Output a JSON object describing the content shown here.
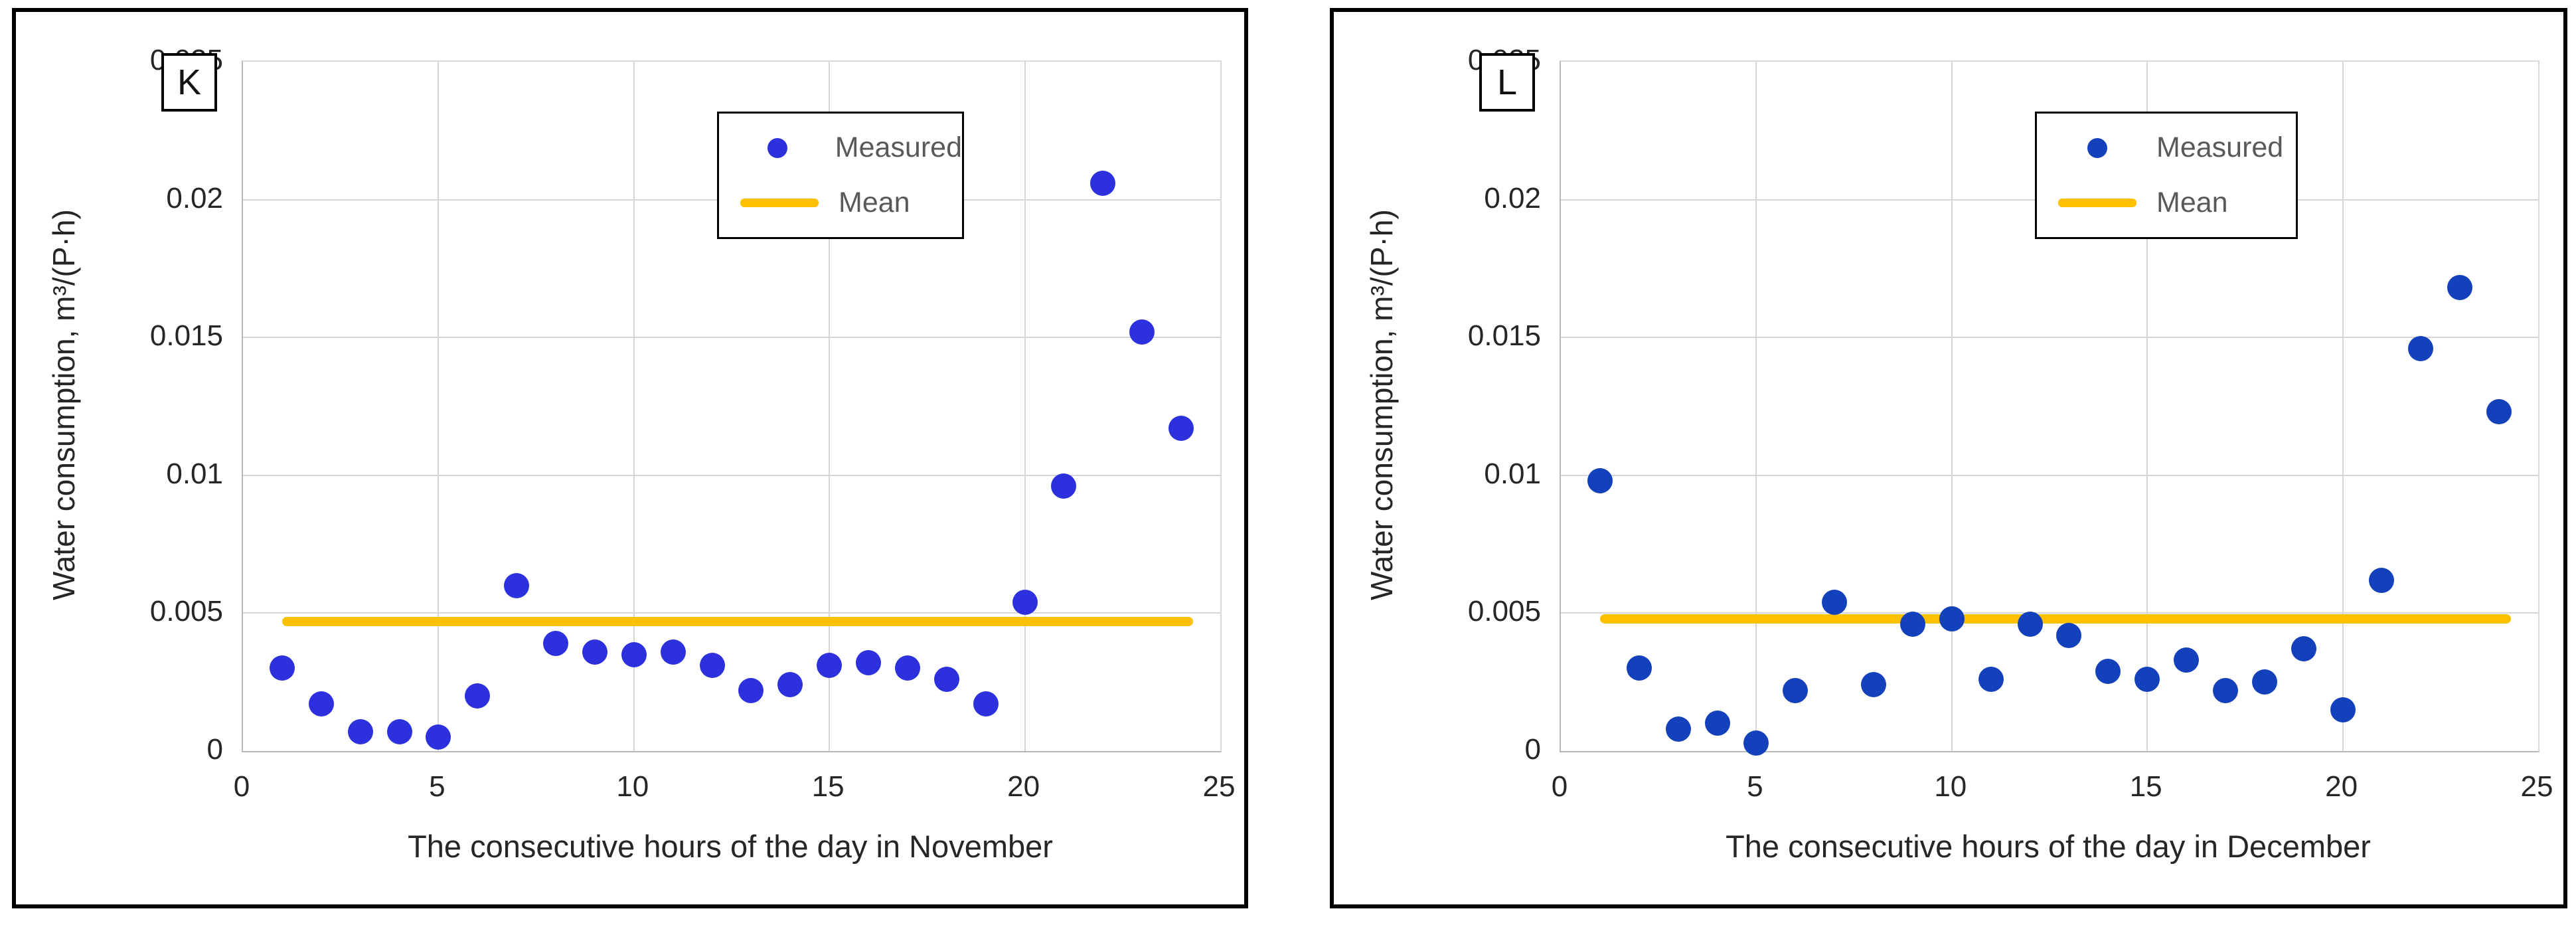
{
  "figure": {
    "ylabel": "Water consumption, m³/(P·h)",
    "legend": {
      "measured": "Measured",
      "mean": "Mean"
    }
  },
  "chart_data": [
    {
      "type": "scatter",
      "panel_label": "K",
      "xlabel": "The consecutive hours of the day in November",
      "ylabel": "Water consumption, m³/(P·h)",
      "xlim": [
        0,
        25
      ],
      "ylim": [
        0,
        0.025
      ],
      "xticks": [
        0,
        5,
        10,
        15,
        20,
        25
      ],
      "xtick_labels": [
        "0",
        "5",
        "10",
        "15",
        "20",
        "25"
      ],
      "yticks": [
        0,
        0.005,
        0.01,
        0.015,
        0.02,
        0.025
      ],
      "ytick_labels": [
        "0",
        "0.005",
        "0.01",
        "0.015",
        "0.02",
        "0.025"
      ],
      "grid": true,
      "legend_position": "top-center-inside",
      "x": [
        1,
        2,
        3,
        4,
        5,
        6,
        7,
        8,
        9,
        10,
        11,
        12,
        13,
        14,
        15,
        16,
        17,
        18,
        19,
        20,
        21,
        22,
        23,
        24
      ],
      "series": [
        {
          "name": "Measured",
          "type": "scatter",
          "color": "#2c31dd",
          "values": [
            0.003,
            0.0017,
            0.0007,
            0.0007,
            0.0005,
            0.002,
            0.006,
            0.0039,
            0.0036,
            0.0035,
            0.0036,
            0.0031,
            0.0022,
            0.0024,
            0.0031,
            0.0032,
            0.003,
            0.0026,
            0.0017,
            0.0054,
            0.0096,
            0.0206,
            0.0152,
            0.0117
          ]
        },
        {
          "name": "Mean",
          "type": "line",
          "color": "#ffc000",
          "value": 0.0047,
          "x_start": 1,
          "x_end": 24.3
        }
      ]
    },
    {
      "type": "scatter",
      "panel_label": "L",
      "xlabel": "The consecutive hours of the day in December",
      "ylabel": "Water consumption, m³/(P·h)",
      "xlim": [
        0,
        25
      ],
      "ylim": [
        0,
        0.025
      ],
      "xticks": [
        0,
        5,
        10,
        15,
        20,
        25
      ],
      "xtick_labels": [
        "0",
        "5",
        "10",
        "15",
        "20",
        "25"
      ],
      "yticks": [
        0,
        0.005,
        0.01,
        0.015,
        0.02,
        0.025
      ],
      "ytick_labels": [
        "0",
        "0.005",
        "0.01",
        "0.015",
        "0.02",
        "0.025"
      ],
      "grid": true,
      "legend_position": "top-center-inside",
      "x": [
        1,
        2,
        3,
        4,
        5,
        6,
        7,
        8,
        9,
        10,
        11,
        12,
        13,
        14,
        15,
        16,
        17,
        18,
        19,
        20,
        21,
        22,
        23,
        24
      ],
      "series": [
        {
          "name": "Measured",
          "type": "scatter",
          "color": "#1341bb",
          "values": [
            0.0098,
            0.003,
            0.0008,
            0.001,
            0.0003,
            0.0022,
            0.0054,
            0.0024,
            0.0046,
            0.0048,
            0.0026,
            0.0046,
            0.0042,
            0.0029,
            0.0026,
            0.0033,
            0.0022,
            0.0025,
            0.0037,
            0.0015,
            0.0062,
            0.0146,
            0.0168,
            0.0123
          ]
        },
        {
          "name": "Mean",
          "type": "line",
          "color": "#ffc000",
          "value": 0.0048,
          "x_start": 1,
          "x_end": 24.3
        }
      ]
    }
  ]
}
